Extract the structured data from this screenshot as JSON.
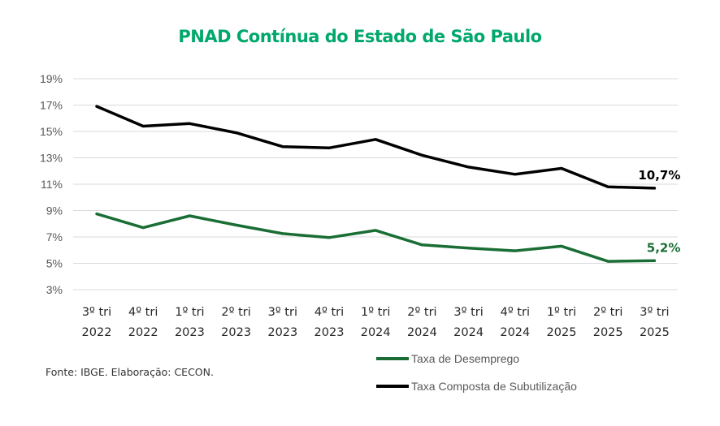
{
  "chart_data": {
    "type": "line",
    "title": "PNAD Contínua do Estado de São Paulo",
    "xlabel": "",
    "ylabel": "",
    "categories": [
      [
        "3º tri",
        "2022"
      ],
      [
        "4º tri",
        "2022"
      ],
      [
        "1º tri",
        "2023"
      ],
      [
        "2º tri",
        "2023"
      ],
      [
        "3º tri",
        "2023"
      ],
      [
        "4º tri",
        "2023"
      ],
      [
        "1º tri",
        "2024"
      ],
      [
        "2º tri",
        "2024"
      ],
      [
        "3º tri",
        "2024"
      ],
      [
        "4º tri",
        "2024"
      ],
      [
        "1º tri",
        "2025"
      ],
      [
        "2º tri",
        "2025"
      ],
      [
        "3º tri",
        "2025"
      ]
    ],
    "ylim": [
      3,
      19
    ],
    "yticks": [
      3,
      5,
      7,
      9,
      11,
      13,
      15,
      17,
      19
    ],
    "ytick_labels": [
      "3%",
      "5%",
      "7%",
      "9%",
      "11%",
      "13%",
      "15%",
      "17%",
      "19%"
    ],
    "grid": true,
    "legend_position": "bottom-right",
    "series": [
      {
        "name": "Taxa de Desemprego",
        "color": "#1a6e35",
        "values": [
          8.75,
          7.7,
          8.6,
          7.9,
          7.25,
          6.95,
          7.5,
          6.4,
          6.15,
          5.95,
          6.3,
          5.15,
          5.2
        ],
        "end_label": "5,2%"
      },
      {
        "name": "Taxa Composta de Subutilização",
        "color": "#000000",
        "values": [
          16.9,
          15.4,
          15.6,
          14.9,
          13.85,
          13.75,
          14.4,
          13.2,
          12.3,
          11.75,
          12.2,
          10.8,
          10.7
        ],
        "end_label": "10,7%"
      }
    ]
  },
  "source": "Fonte: IBGE. Elaboração: CECON.",
  "colors": {
    "title": "#00a86b",
    "grid": "#d9d9d9"
  }
}
